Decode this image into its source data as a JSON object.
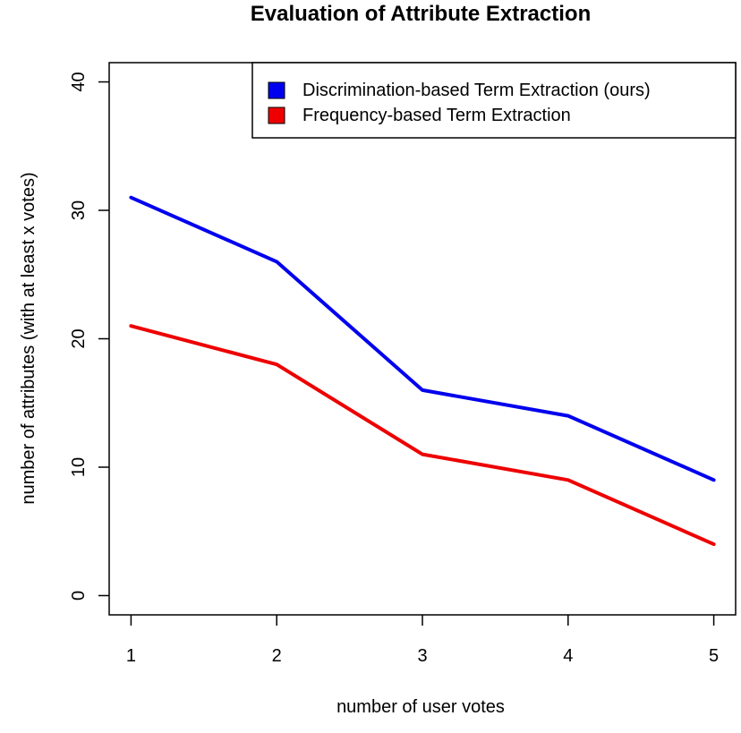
{
  "chart_data": {
    "type": "line",
    "title": "Evaluation of Attribute Extraction",
    "xlabel": "number of user votes",
    "ylabel": "number of attributes (with at least x votes)",
    "x": [
      1,
      2,
      3,
      4,
      5
    ],
    "xticks": [
      "1",
      "2",
      "3",
      "4",
      "5"
    ],
    "yticks": [
      "0",
      "10",
      "20",
      "30",
      "40"
    ],
    "xlim": [
      0.85,
      5.15
    ],
    "ylim": [
      -1.5,
      41.5
    ],
    "grid": false,
    "legend_position": "top-right",
    "series": [
      {
        "name": "Discrimination-based Term Extraction (ours)",
        "color": "#0000ee",
        "values": [
          31,
          26,
          16,
          14,
          9
        ]
      },
      {
        "name": "Frequency-based Term Extraction",
        "color": "#ee0000",
        "values": [
          21,
          18,
          11,
          9,
          4
        ]
      }
    ]
  }
}
